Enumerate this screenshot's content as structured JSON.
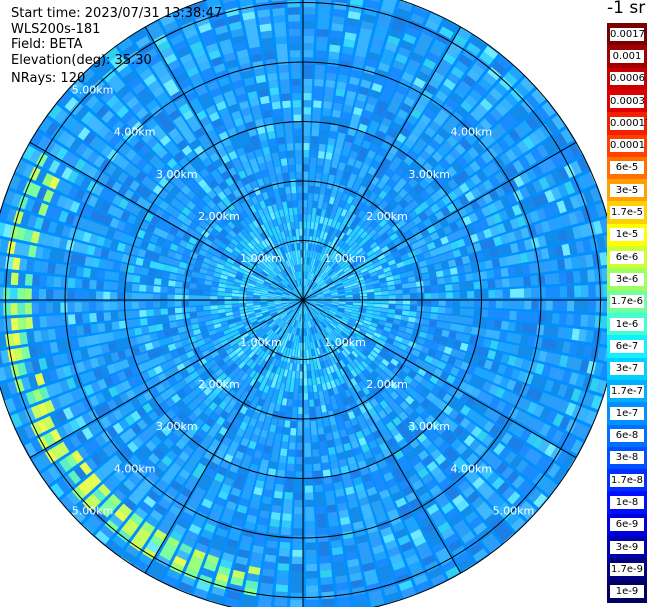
{
  "header": {
    "start_time": "Start time: 2023/07/31 13:38:47",
    "instrument": "WLS200s-181",
    "field": "Field: BETA",
    "elevation": "Elevation(deg): 35.30",
    "nrays": "NRays: 120"
  },
  "colorbar": {
    "unit_label": "-1 sr",
    "levels": [
      "0.0017",
      "0.001",
      "0.0006",
      "0.0003",
      "0.00017",
      "0.0001",
      "6e-5",
      "3e-5",
      "1.7e-5",
      "1e-5",
      "6e-6",
      "3e-6",
      "1.7e-6",
      "1e-6",
      "6e-7",
      "3e-7",
      "1.7e-7",
      "1e-7",
      "6e-8",
      "3e-8",
      "1.7e-8",
      "1e-8",
      "6e-9",
      "3e-9",
      "1.7e-9",
      "1e-9"
    ],
    "colors": [
      "#7a0000",
      "#a00000",
      "#c80000",
      "#e00000",
      "#f02000",
      "#ff4000",
      "#ff7000",
      "#ffa000",
      "#ffd000",
      "#ffff00",
      "#d0ff30",
      "#a0ff60",
      "#70ffa0",
      "#40ffd0",
      "#10f0ff",
      "#00d0ff",
      "#00b0ff",
      "#0090ff",
      "#0070ff",
      "#0050ff",
      "#0030ff",
      "#0010ff",
      "#0000e0",
      "#0000b0",
      "#000080",
      "#000060"
    ]
  },
  "chart_data": {
    "type": "heatmap",
    "projection": "polar-ppi",
    "range_unit": "km",
    "range_rings_km": [
      1,
      2,
      3,
      4,
      5
    ],
    "range_ring_labels": [
      "1.00km",
      "2.00km",
      "3.00km",
      "4.00km",
      "5.00km"
    ],
    "max_range_km": 5.3,
    "n_rays": 120,
    "azimuth_spokes_deg": [
      0,
      30,
      60,
      90,
      120,
      150,
      180,
      210,
      240,
      270,
      300,
      330
    ],
    "dominant_value_level": "1e-7",
    "background_band": {
      "range_km": [
        0,
        1.0
      ],
      "level": "3e-7"
    },
    "enhanced_ring": {
      "range_km": [
        4.5,
        5.0
      ],
      "sector_deg": [
        190,
        300
      ],
      "level": "1e-6"
    }
  }
}
